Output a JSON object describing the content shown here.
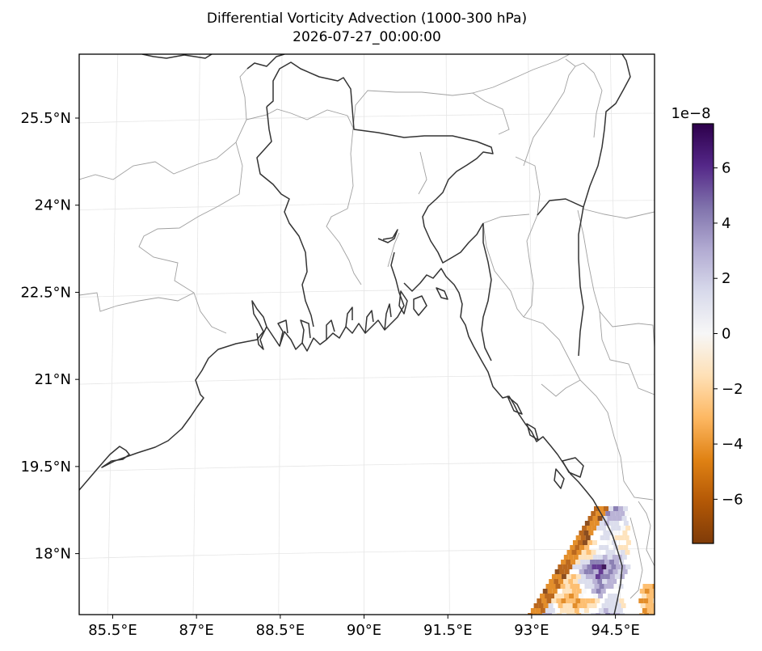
{
  "title": "Differential Vorticity Advection (1000-300 hPa)",
  "subtitle": "2026-07-27_00:00:00",
  "map": {
    "lon_range": [
      84.9,
      95.2
    ],
    "lat_range": [
      16.95,
      26.6
    ],
    "lon_ticks": [
      {
        "value": 85.5,
        "label": "85.5°E"
      },
      {
        "value": 87,
        "label": "87°E"
      },
      {
        "value": 88.5,
        "label": "88.5°E"
      },
      {
        "value": 90,
        "label": "90°E"
      },
      {
        "value": 91.5,
        "label": "91.5°E"
      },
      {
        "value": 93,
        "label": "93°E"
      },
      {
        "value": 94.5,
        "label": "94.5°E"
      }
    ],
    "lat_ticks": [
      {
        "value": 25.5,
        "label": "25.5°N"
      },
      {
        "value": 24,
        "label": "24°N"
      },
      {
        "value": 22.5,
        "label": "22.5°N"
      },
      {
        "value": 21,
        "label": "21°N"
      },
      {
        "value": 19.5,
        "label": "19.5°N"
      },
      {
        "value": 18,
        "label": "18°N"
      }
    ],
    "gridlines": true
  },
  "colorbar": {
    "exponent_label": "1e−8",
    "colormap": "PuOr",
    "range": [
      -7.6,
      7.6
    ],
    "ticks": [
      {
        "value": 6,
        "label": "6"
      },
      {
        "value": 4,
        "label": "4"
      },
      {
        "value": 2,
        "label": "2"
      },
      {
        "value": 0,
        "label": "0"
      },
      {
        "value": -2,
        "label": "−2"
      },
      {
        "value": -4,
        "label": "−4"
      },
      {
        "value": -6,
        "label": "−6"
      }
    ],
    "stops": [
      "#7f3b08",
      "#b35806",
      "#e08214",
      "#fdb863",
      "#fee0b6",
      "#f7f7f7",
      "#d8daeb",
      "#b2abd2",
      "#8073ac",
      "#542788",
      "#2d004b"
    ]
  }
}
